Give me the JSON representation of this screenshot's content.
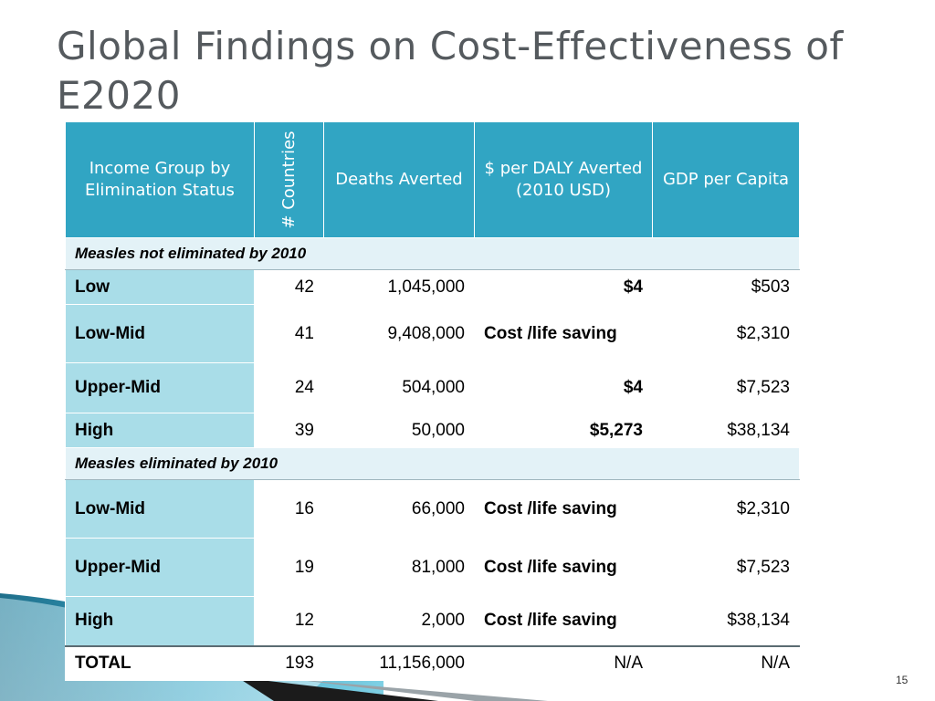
{
  "slide": {
    "title": "Global Findings on Cost-Effectiveness of E2020",
    "page_number": "15"
  },
  "table": {
    "headers": [
      "Income Group by Elimination Status",
      "# Countries",
      "Deaths Averted",
      "$ per DALY Averted (2010 USD)",
      "GDP per Capita"
    ],
    "sections": [
      {
        "title": "Measles not eliminated by 2010",
        "rows": [
          {
            "group": "Low",
            "countries": "42",
            "deaths": "1,045,000",
            "cost": "$4",
            "gdp": "$503"
          },
          {
            "group": "Low-Mid",
            "countries": "41",
            "deaths": "9,408,000",
            "cost": "Cost /life saving",
            "gdp": "$2,310"
          },
          {
            "group": "Upper-Mid",
            "countries": "24",
            "deaths": "504,000",
            "cost": "$4",
            "gdp": "$7,523"
          },
          {
            "group": "High",
            "countries": "39",
            "deaths": "50,000",
            "cost": "$5,273",
            "gdp": "$38,134"
          }
        ]
      },
      {
        "title": "Measles eliminated by 2010",
        "rows": [
          {
            "group": "Low-Mid",
            "countries": "16",
            "deaths": "66,000",
            "cost": "Cost /life saving",
            "gdp": "$2,310"
          },
          {
            "group": "Upper-Mid",
            "countries": "19",
            "deaths": "81,000",
            "cost": "Cost /life saving",
            "gdp": "$7,523"
          },
          {
            "group": "High",
            "countries": "12",
            "deaths": "2,000",
            "cost": "Cost /life saving",
            "gdp": "$38,134"
          }
        ]
      }
    ],
    "total": {
      "group": "TOTAL",
      "countries": "193",
      "deaths": "11,156,000",
      "cost": "N/A",
      "gdp": "N/A"
    }
  },
  "colors": {
    "header_bg": "#31a5c3",
    "label_bg": "#a9dde8",
    "section_bg": "#e3f2f7",
    "title_text": "#555a5e"
  }
}
